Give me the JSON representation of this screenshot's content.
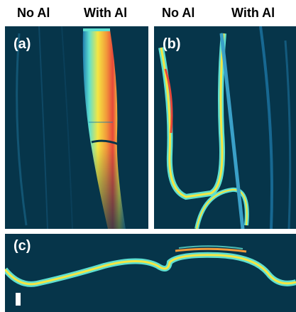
{
  "column_labels": [
    "No Al",
    "With Al",
    "No Al",
    "With Al"
  ],
  "panels": {
    "a": {
      "label": "(a)"
    },
    "b": {
      "label": "(b)"
    },
    "c": {
      "label": "(c)"
    }
  },
  "colors": {
    "background": "#06354a",
    "low": "#1f7fb0",
    "mid": "#5fe0d0",
    "yellow": "#f5e642",
    "orange": "#f29a3a",
    "red": "#e8473a"
  },
  "scale_bar": "scale-bar"
}
